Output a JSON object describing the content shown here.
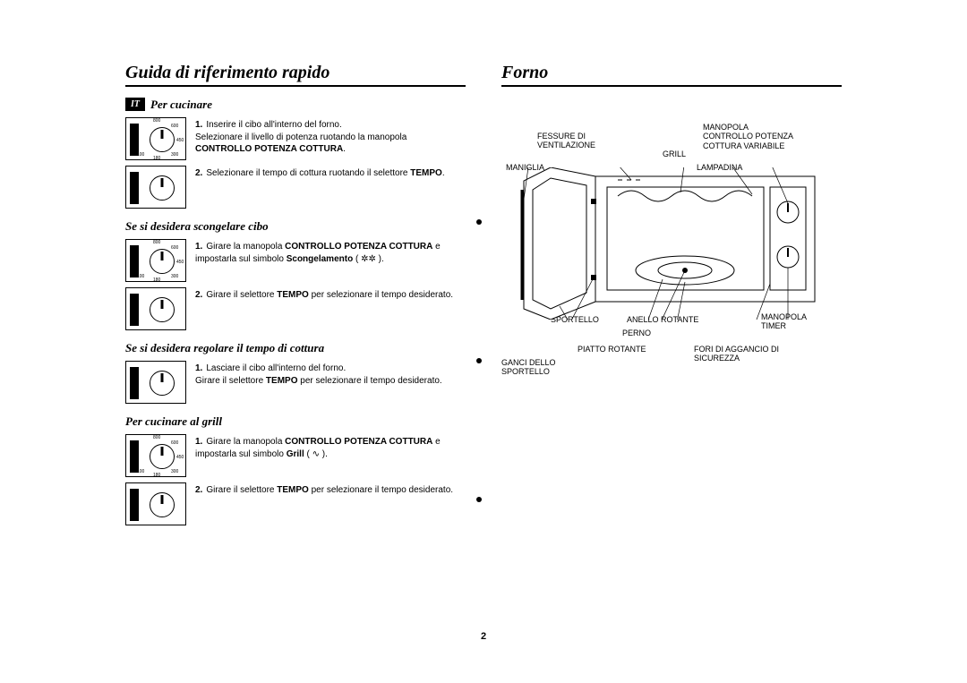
{
  "page_number": "2",
  "left": {
    "title": "Guida di riferimento rapido",
    "lang_badge": "IT",
    "sections": [
      {
        "heading": "Per cucinare",
        "steps": [
          {
            "num": "1.",
            "text_parts": [
              "Inserire il cibo all'interno del forno.\nSelezionare il livello di potenza ruotando la manopola ",
              {
                "b": "CONTROLLO POTENZA COTTURA"
              },
              "."
            ]
          },
          {
            "num": "2.",
            "text_parts": [
              "Selezionare il tempo di cottura ruotando il selettore ",
              {
                "b": "TEMPO"
              },
              "."
            ]
          }
        ]
      },
      {
        "heading": "Se si desidera scongelare cibo",
        "steps": [
          {
            "num": "1.",
            "text_parts": [
              "Girare la manopola ",
              {
                "b": "CONTROLLO POTENZA COTTURA"
              },
              " e impostarla sul simbolo ",
              {
                "b": "Scongelamento"
              },
              "  ( ✲✲ )."
            ]
          },
          {
            "num": "2.",
            "text_parts": [
              "Girare il selettore ",
              {
                "b": "TEMPO"
              },
              " per selezionare il tempo desiderato."
            ]
          }
        ]
      },
      {
        "heading": "Se si desidera regolare il tempo di cottura",
        "steps": [
          {
            "num": "1.",
            "text_parts": [
              "Lasciare il cibo all'interno del forno.\nGirare il selettore ",
              {
                "b": "TEMPO"
              },
              " per selezionare il tempo desiderato."
            ]
          }
        ]
      },
      {
        "heading": "Per cucinare al grill",
        "steps": [
          {
            "num": "1.",
            "text_parts": [
              "Girare la manopola ",
              {
                "b": "CONTROLLO POTENZA COTTURA"
              },
              " e impostarla sul simbolo ",
              {
                "b": "Grill"
              },
              " ( ∿ )."
            ]
          },
          {
            "num": "2.",
            "text_parts": [
              "Girare il selettore ",
              {
                "b": "TEMPO"
              },
              " per selezionare il tempo desiderato."
            ]
          }
        ]
      }
    ],
    "dial_labels": [
      "800",
      "600",
      "450",
      "300",
      "180",
      "100"
    ]
  },
  "right": {
    "title": "Forno",
    "labels": {
      "fessure": "FESSURE DI\nVENTILAZIONE",
      "manopola_potenza": "MANOPOLA\nCONTROLLO POTENZA\nCOTTURA VARIABILE",
      "grill": "GRILL",
      "maniglia": "MANIGLIA",
      "lampadina": "LAMPADINA",
      "sportello": "SPORTELLO",
      "anello": "ANELLO ROTANTE",
      "manopola_timer": "MANOPOLA\nTIMER",
      "perno": "PERNO",
      "piatto": "PIATTO ROTANTE",
      "fori": "FORI DI AGGANCIO DI\nSICUREZZA",
      "ganci": "GANCI DELLO\nSPORTELLO"
    }
  }
}
